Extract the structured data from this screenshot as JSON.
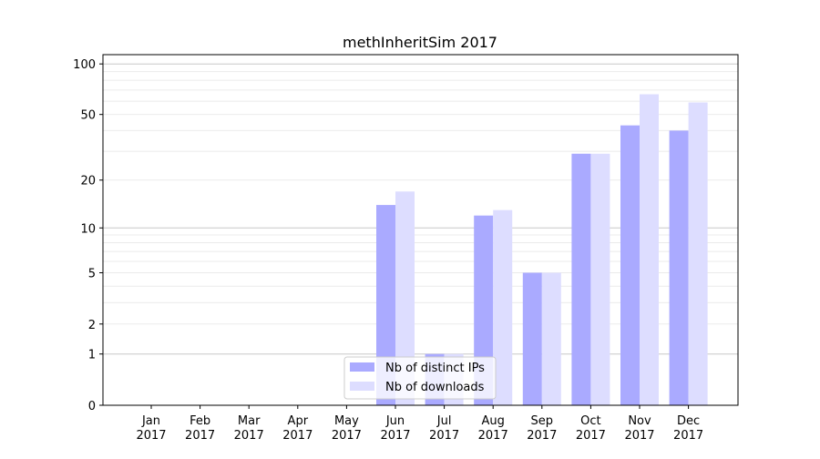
{
  "chart_data": {
    "type": "bar",
    "title": "methInheritSim 2017",
    "xlabel": "",
    "ylabel": "",
    "y_scale": "log10(1+y)",
    "ylim": [
      0,
      110
    ],
    "y_ticks": [
      0,
      1,
      2,
      5,
      10,
      20,
      50,
      100
    ],
    "grid": true,
    "legend_position": "lower-center",
    "categories": [
      [
        "Jan",
        "2017"
      ],
      [
        "Feb",
        "2017"
      ],
      [
        "Mar",
        "2017"
      ],
      [
        "Apr",
        "2017"
      ],
      [
        "May",
        "2017"
      ],
      [
        "Jun",
        "2017"
      ],
      [
        "Jul",
        "2017"
      ],
      [
        "Aug",
        "2017"
      ],
      [
        "Sep",
        "2017"
      ],
      [
        "Oct",
        "2017"
      ],
      [
        "Nov",
        "2017"
      ],
      [
        "Dec",
        "2017"
      ]
    ],
    "series": [
      {
        "name": "Nb of distinct IPs",
        "color": "#aaaaff",
        "values": [
          0,
          0,
          0,
          0,
          0,
          14,
          1,
          12,
          5,
          29,
          43,
          40
        ]
      },
      {
        "name": "Nb of downloads",
        "color": "#ddddff",
        "values": [
          0,
          0,
          0,
          0,
          0,
          17,
          1,
          13,
          5,
          29,
          66,
          59
        ]
      }
    ]
  }
}
